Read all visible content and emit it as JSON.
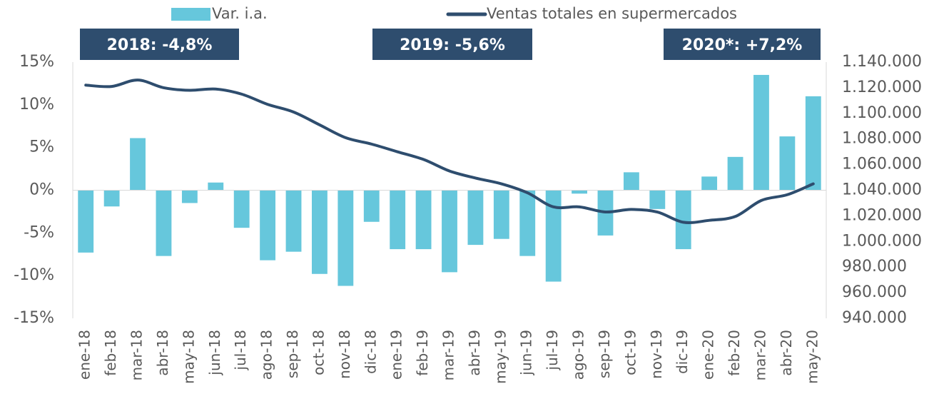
{
  "chart_data": {
    "type": "bar",
    "categories": [
      "ene-18",
      "feb-18",
      "mar-18",
      "abr-18",
      "may-18",
      "jun-18",
      "jul-18",
      "ago-18",
      "sep-18",
      "oct-18",
      "nov-18",
      "dic-18",
      "ene-19",
      "feb-19",
      "mar-19",
      "abr-19",
      "may-19",
      "jun-19",
      "jul-19",
      "ago-19",
      "sep-19",
      "oct-19",
      "nov-19",
      "dic-19",
      "ene-20",
      "feb-20",
      "mar-20",
      "abr-20",
      "may-20"
    ],
    "series": [
      {
        "name": "Var. i.a.",
        "type": "bar",
        "color": "#66c7dc",
        "values": [
          -7.3,
          -1.9,
          6.1,
          -7.7,
          -1.5,
          0.9,
          -4.4,
          -8.2,
          -7.2,
          -9.8,
          -11.2,
          -3.7,
          -6.9,
          -6.9,
          -9.6,
          -6.4,
          -5.7,
          -7.7,
          -10.7,
          -0.4,
          -5.3,
          2.1,
          -2.2,
          -6.9,
          1.6,
          3.9,
          13.5,
          6.3,
          11.0
        ]
      },
      {
        "name": "Ventas totales en supermercados",
        "type": "line",
        "axis": "y2",
        "color": "#2e4d6e",
        "values": [
          1122000,
          1121000,
          1126000,
          1120000,
          1118000,
          1119000,
          1115000,
          1107000,
          1101000,
          1091000,
          1081000,
          1076000,
          1070000,
          1064000,
          1055000,
          1049500,
          1045000,
          1038000,
          1027000,
          1027000,
          1023000,
          1025000,
          1023000,
          1015000,
          1016500,
          1019500,
          1032000,
          1036500,
          1045000
        ]
      }
    ],
    "annotations": [
      "2018:  -4,8%",
      "2019:  -5,6%",
      "2020*:  +7,2%"
    ],
    "ylim": [
      -15,
      15
    ],
    "yticks": [
      {
        "value": 15,
        "label": "15%"
      },
      {
        "value": 10,
        "label": "10%"
      },
      {
        "value": 5,
        "label": "5%"
      },
      {
        "value": 0,
        "label": "0%"
      },
      {
        "value": -5,
        "label": "-5%"
      },
      {
        "value": -10,
        "label": "-10%"
      },
      {
        "value": -15,
        "label": "-15%"
      }
    ],
    "y2lim": [
      940000,
      1140000
    ],
    "y2ticks": [
      {
        "value": 1140000,
        "label": "1.140.000"
      },
      {
        "value": 1120000,
        "label": "1.120.000"
      },
      {
        "value": 1100000,
        "label": "1.100.000"
      },
      {
        "value": 1080000,
        "label": "1.080.000"
      },
      {
        "value": 1060000,
        "label": "1.060.000"
      },
      {
        "value": 1040000,
        "label": "1.040.000"
      },
      {
        "value": 1020000,
        "label": "1.020.000"
      },
      {
        "value": 1000000,
        "label": "1.000.000"
      },
      {
        "value": 980000,
        "label": "980.000"
      },
      {
        "value": 960000,
        "label": "960.000"
      },
      {
        "value": 940000,
        "label": "940.000"
      }
    ],
    "grid": false,
    "legend": "top"
  }
}
